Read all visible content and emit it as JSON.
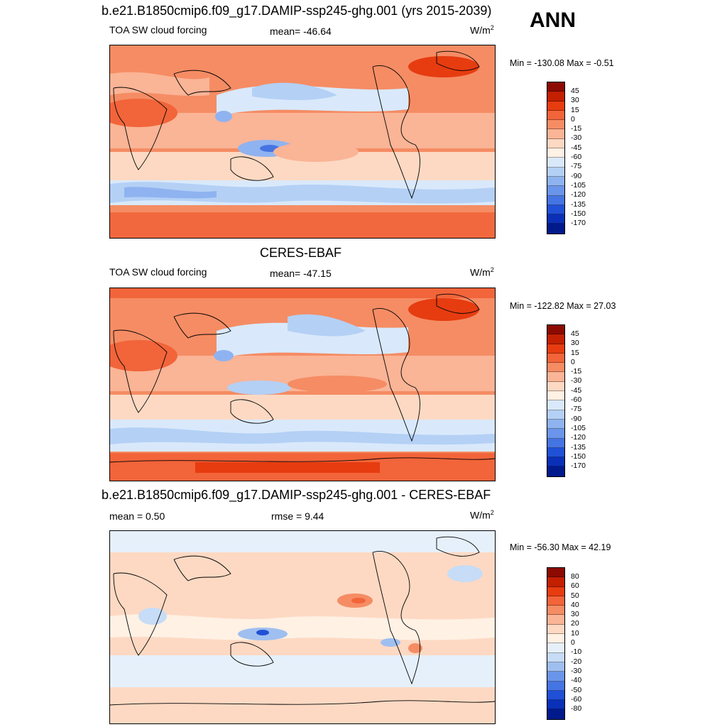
{
  "season": "ANN",
  "units_base": "W/m",
  "units_exp": "2",
  "colors": {
    "absolute_palette": [
      "#8c0a00",
      "#c22000",
      "#e63c10",
      "#f2643a",
      "#f58c64",
      "#fab496",
      "#fdd9c3",
      "#fff1e4",
      "#d9e9fb",
      "#b4d0f5",
      "#8fb3f0",
      "#6a95ea",
      "#4574e3",
      "#2050d6",
      "#0a30b8",
      "#001a8c"
    ],
    "diff_palette": [
      "#8c0a00",
      "#c22000",
      "#e63c10",
      "#f2643a",
      "#f58c64",
      "#fab496",
      "#fdd9c3",
      "#fff1e4",
      "#e6f0fb",
      "#c7dcf6",
      "#9fbff0",
      "#6a95ea",
      "#4574e3",
      "#2050d6",
      "#0a30b8",
      "#001a8c"
    ]
  },
  "panels": [
    {
      "title": "b.e21.B1850cmip6.f09_g17.DAMIP-ssp245-ghg.001 (yrs 2015-2039)",
      "left_label": "TOA SW cloud forcing",
      "stat": "mean= -46.64",
      "minmax": "Min = -130.08 Max =  -0.51",
      "levels": [
        "45",
        "30",
        "15",
        "0",
        "-15",
        "-30",
        "-45",
        "-60",
        "-75",
        "-90",
        "-105",
        "-120",
        "-135",
        "-150",
        "-170"
      ]
    },
    {
      "title": "CERES-EBAF",
      "left_label": "TOA SW cloud forcing",
      "stat": "mean= -47.15",
      "minmax": "Min = -122.82 Max =  27.03",
      "levels": [
        "45",
        "30",
        "15",
        "0",
        "-15",
        "-30",
        "-45",
        "-60",
        "-75",
        "-90",
        "-105",
        "-120",
        "-135",
        "-150",
        "-170"
      ]
    },
    {
      "title": "b.e21.B1850cmip6.f09_g17.DAMIP-ssp245-ghg.001 - CERES-EBAF",
      "left_label": "mean =   0.50",
      "stat": "rmse =   9.44",
      "minmax": "Min = -56.30 Max =  42.19",
      "levels": [
        "80",
        "60",
        "50",
        "40",
        "30",
        "20",
        "10",
        "0",
        "-10",
        "-20",
        "-30",
        "-40",
        "-50",
        "-60",
        "-80"
      ]
    }
  ]
}
